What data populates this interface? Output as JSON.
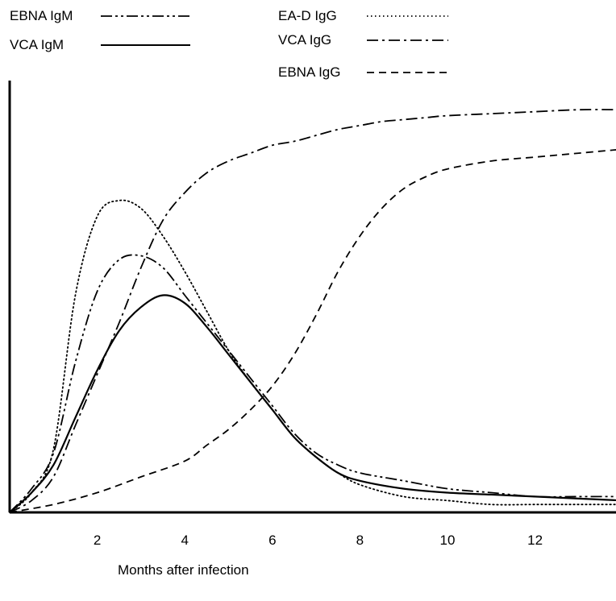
{
  "chart_data": {
    "type": "line",
    "title": "",
    "xlabel": "Months after infection",
    "ylabel": "",
    "xlim": [
      0,
      14
    ],
    "ylim": [
      0,
      100
    ],
    "xticks": [
      2,
      4,
      6,
      8,
      10,
      12
    ],
    "grid": false,
    "legend_position": "top",
    "series": [
      {
        "name": "EBNA IgM",
        "dash": "dash-dot-dot",
        "x": [
          0,
          0.5,
          1.0,
          1.5,
          2.0,
          2.5,
          3.0,
          3.5,
          4.0,
          4.5,
          5.0,
          5.5,
          6.0,
          6.5,
          7.0,
          7.5,
          8.0,
          9.0,
          10.0,
          11.0,
          12.0,
          13.0,
          14.0
        ],
        "values": [
          0,
          6,
          15,
          38,
          56,
          64,
          65,
          62,
          55,
          48,
          41,
          34,
          27,
          20,
          15,
          12,
          10,
          8,
          6,
          5,
          4,
          4,
          4
        ]
      },
      {
        "name": "VCA IgM",
        "dash": "solid",
        "x": [
          0,
          0.5,
          1.0,
          1.5,
          2.0,
          2.5,
          3.0,
          3.5,
          4.0,
          4.5,
          5.0,
          5.5,
          6.0,
          6.5,
          7.0,
          7.5,
          8.0,
          9.0,
          10.0,
          11.0,
          12.0,
          13.0,
          14.0
        ],
        "values": [
          0,
          5,
          12,
          24,
          36,
          46,
          52,
          55,
          53,
          47,
          40,
          33,
          26,
          19,
          14,
          10,
          8,
          6,
          5,
          4.5,
          4,
          3.5,
          3
        ]
      },
      {
        "name": "EA-D IgG",
        "dash": "dotted",
        "x": [
          0,
          0.5,
          1.0,
          1.5,
          2.0,
          2.5,
          3.0,
          3.5,
          4.0,
          4.5,
          5.0,
          5.5,
          6.0,
          6.5,
          7.0,
          7.5,
          8.0,
          9.0,
          10.0,
          11.0,
          12.0,
          13.0,
          14.0
        ],
        "values": [
          0,
          5,
          16,
          55,
          75,
          79,
          77,
          70,
          61,
          51,
          41,
          33,
          26,
          19,
          14,
          10,
          7,
          4,
          3,
          2,
          2,
          2,
          2
        ]
      },
      {
        "name": "VCA IgG",
        "dash": "dash-dot",
        "x": [
          0,
          0.5,
          1.0,
          1.5,
          2.0,
          2.5,
          3.0,
          3.5,
          4.0,
          4.5,
          5.0,
          5.5,
          6.0,
          6.5,
          7.0,
          7.5,
          8.0,
          8.5,
          9.0,
          9.5,
          10.0,
          11.0,
          12.0,
          13.0,
          14.0
        ],
        "values": [
          0,
          3,
          9,
          22,
          35,
          48,
          62,
          74,
          81,
          86,
          89,
          91,
          93,
          94,
          95.5,
          97,
          98,
          99,
          99.5,
          100,
          100.5,
          101,
          101.5,
          102,
          102
        ]
      },
      {
        "name": "EBNA IgG",
        "dash": "dashed",
        "x": [
          0,
          1.0,
          2.0,
          3.0,
          4.0,
          4.5,
          5.0,
          5.5,
          6.0,
          6.5,
          7.0,
          7.5,
          8.0,
          8.5,
          9.0,
          9.5,
          10.0,
          11.0,
          12.0,
          13.0,
          14.0
        ],
        "values": [
          0,
          2,
          5,
          9,
          13,
          17,
          21,
          26,
          32,
          40,
          50,
          61,
          70,
          77,
          82,
          85,
          87,
          89,
          90,
          91,
          92
        ]
      }
    ]
  }
}
